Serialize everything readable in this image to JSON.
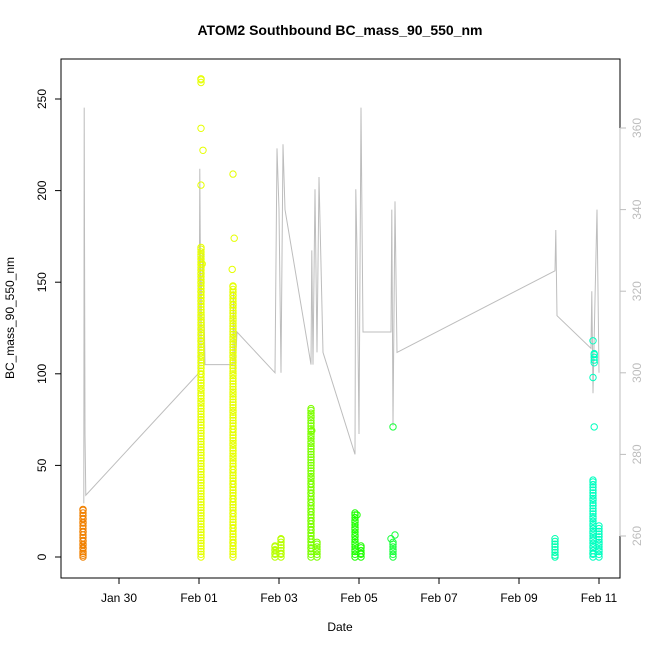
{
  "chart_data": {
    "type": "scatter",
    "title": "ATOM2 Southbound BC_mass_90_550_nm",
    "xlabel": "Date",
    "ylabel": "BC_mass_90_550_nm",
    "x_ticks": [
      "Jan 30",
      "Feb 01",
      "Feb 03",
      "Feb 05",
      "Feb 07",
      "Feb 09",
      "Feb 11"
    ],
    "y_ticks": [
      0,
      50,
      100,
      150,
      200,
      250
    ],
    "y2_ticks": [
      260,
      280,
      300,
      320,
      340,
      360
    ],
    "xlim": [
      "Jan 29 00:24",
      "Feb 11 15:12"
    ],
    "ylim": [
      -10,
      270
    ],
    "y2lim": [
      251.5,
      371.5
    ],
    "grid": false,
    "legend": "none",
    "colors": {
      "scatter_jan29": "#f08000",
      "scatter_feb01": "#e6ff00",
      "scatter_feb03": "#b8ff00",
      "scatter_feb04": "#7cff00",
      "scatter_feb05": "#1eff00",
      "scatter_feb06": "#1aff3c",
      "scatter_feb10": "#00ffb0",
      "scatter_feb11": "#00ffc0",
      "secondary_line": "#bdbdbd",
      "axis": "#000000"
    },
    "series": [
      {
        "color_key": "scatter_jan29",
        "x": [
          "Jan 29 06:00",
          "Jan 29 06:00"
        ],
        "y_range": [
          0,
          26
        ],
        "points": [
          [
            0.1,
            0
          ],
          [
            0.1,
            1
          ],
          [
            0.1,
            2
          ],
          [
            0.1,
            3
          ],
          [
            0.1,
            5
          ],
          [
            0.1,
            7
          ],
          [
            0.1,
            9
          ],
          [
            0.1,
            12
          ],
          [
            0.1,
            14
          ],
          [
            0.1,
            17
          ],
          [
            0.1,
            19
          ],
          [
            0.1,
            21
          ],
          [
            0.1,
            24
          ],
          [
            0.1,
            26
          ]
        ]
      },
      {
        "color_key": "scatter_feb01",
        "points": [
          [
            3.05,
            261
          ],
          [
            3.05,
            259
          ],
          [
            3.05,
            234
          ],
          [
            3.1,
            222
          ],
          [
            3.05,
            203
          ],
          [
            3.05,
            169
          ],
          [
            3.05,
            165
          ],
          [
            3.08,
            160
          ],
          [
            3.05,
            155
          ],
          [
            3.05,
            150
          ],
          [
            3.05,
            145
          ],
          [
            3.05,
            140
          ],
          [
            3.05,
            132
          ],
          [
            3.05,
            125
          ],
          [
            3.05,
            118
          ],
          [
            3.05,
            110
          ],
          [
            3.05,
            100
          ],
          [
            3.05,
            92
          ],
          [
            3.05,
            85
          ],
          [
            3.05,
            78
          ],
          [
            3.05,
            72
          ],
          [
            3.05,
            66
          ],
          [
            3.05,
            60
          ],
          [
            3.05,
            54
          ],
          [
            3.05,
            48
          ],
          [
            3.05,
            42
          ],
          [
            3.05,
            36
          ],
          [
            3.05,
            30
          ],
          [
            3.05,
            24
          ],
          [
            3.05,
            18
          ],
          [
            3.05,
            12
          ],
          [
            3.05,
            6
          ],
          [
            3.05,
            0
          ],
          [
            3.85,
            209
          ],
          [
            3.88,
            174
          ],
          [
            3.83,
            157
          ],
          [
            3.85,
            148
          ],
          [
            3.85,
            143
          ],
          [
            3.85,
            138
          ],
          [
            3.85,
            130
          ],
          [
            3.85,
            120
          ],
          [
            3.85,
            110
          ],
          [
            3.85,
            100
          ],
          [
            3.85,
            90
          ],
          [
            3.85,
            80
          ],
          [
            3.85,
            70
          ],
          [
            3.85,
            62
          ],
          [
            3.85,
            55
          ],
          [
            3.85,
            48
          ],
          [
            3.85,
            40
          ],
          [
            3.85,
            32
          ],
          [
            3.85,
            24
          ],
          [
            3.85,
            16
          ],
          [
            3.85,
            8
          ],
          [
            3.85,
            0
          ]
        ]
      },
      {
        "color_key": "scatter_feb03",
        "points": [
          [
            4.9,
            0
          ],
          [
            4.9,
            2
          ],
          [
            4.9,
            4
          ],
          [
            4.9,
            6
          ],
          [
            5.05,
            10
          ],
          [
            5.05,
            5
          ],
          [
            5.05,
            2
          ],
          [
            5.05,
            0
          ]
        ]
      },
      {
        "color_key": "scatter_feb04",
        "points": [
          [
            5.8,
            81
          ],
          [
            5.8,
            77
          ],
          [
            5.82,
            69
          ],
          [
            5.8,
            67
          ],
          [
            5.8,
            63
          ],
          [
            5.8,
            56
          ],
          [
            5.8,
            50
          ],
          [
            5.8,
            47
          ],
          [
            5.8,
            44
          ],
          [
            5.8,
            40
          ],
          [
            5.8,
            35
          ],
          [
            5.8,
            30
          ],
          [
            5.8,
            25
          ],
          [
            5.8,
            20
          ],
          [
            5.8,
            15
          ],
          [
            5.8,
            10
          ],
          [
            5.8,
            5
          ],
          [
            5.8,
            0
          ],
          [
            5.95,
            8
          ],
          [
            5.95,
            4
          ],
          [
            5.95,
            0
          ]
        ]
      },
      {
        "color_key": "scatter_feb05",
        "points": [
          [
            6.9,
            24
          ],
          [
            6.95,
            23
          ],
          [
            6.9,
            20
          ],
          [
            6.9,
            16
          ],
          [
            6.9,
            12
          ],
          [
            6.9,
            8
          ],
          [
            6.9,
            4
          ],
          [
            6.9,
            0
          ],
          [
            7.05,
            6
          ],
          [
            7.05,
            2
          ],
          [
            7.05,
            0
          ]
        ]
      },
      {
        "color_key": "scatter_feb06",
        "points": [
          [
            7.85,
            71
          ],
          [
            7.8,
            10
          ],
          [
            7.9,
            12
          ],
          [
            7.85,
            8
          ],
          [
            7.85,
            4
          ],
          [
            7.85,
            0
          ]
        ]
      },
      {
        "color_key": "scatter_feb10",
        "points": [
          [
            11.9,
            10
          ],
          [
            11.9,
            7
          ],
          [
            11.9,
            4
          ],
          [
            11.9,
            1
          ],
          [
            11.9,
            0
          ]
        ]
      },
      {
        "color_key": "scatter_feb11",
        "points": [
          [
            12.85,
            118
          ],
          [
            12.88,
            111
          ],
          [
            12.88,
            106
          ],
          [
            12.85,
            98
          ],
          [
            12.88,
            71
          ],
          [
            12.85,
            42
          ],
          [
            12.85,
            38
          ],
          [
            12.85,
            32
          ],
          [
            12.85,
            28
          ],
          [
            12.85,
            22
          ],
          [
            12.85,
            18
          ],
          [
            12.85,
            14
          ],
          [
            12.85,
            10
          ],
          [
            12.85,
            6
          ],
          [
            12.85,
            2
          ],
          [
            12.85,
            0
          ],
          [
            13.0,
            17
          ],
          [
            13.0,
            8
          ],
          [
            13.0,
            4
          ],
          [
            13.0,
            0
          ]
        ]
      }
    ],
    "secondary_series": {
      "axis": "right",
      "color_key": "secondary_line",
      "note_x_units": "days since Jan 29 00:00",
      "points": [
        [
          0.12,
          268
        ],
        [
          0.13,
          365
        ],
        [
          0.15,
          285
        ],
        [
          0.17,
          270
        ],
        [
          3.0,
          300
        ],
        [
          3.02,
          350
        ],
        [
          3.05,
          306
        ],
        [
          3.06,
          320
        ],
        [
          3.1,
          330
        ],
        [
          3.15,
          302
        ],
        [
          3.85,
          302
        ],
        [
          3.86,
          320
        ],
        [
          3.9,
          300
        ],
        [
          3.95,
          310
        ],
        [
          4.9,
          300
        ],
        [
          4.95,
          355
        ],
        [
          5.0,
          340
        ],
        [
          5.05,
          300
        ],
        [
          5.1,
          356
        ],
        [
          5.15,
          340
        ],
        [
          5.8,
          302
        ],
        [
          5.82,
          330
        ],
        [
          5.85,
          302
        ],
        [
          5.9,
          345
        ],
        [
          5.95,
          305
        ],
        [
          6.0,
          348
        ],
        [
          6.1,
          305
        ],
        [
          6.9,
          280
        ],
        [
          6.92,
          345
        ],
        [
          6.95,
          330
        ],
        [
          7.0,
          285
        ],
        [
          7.05,
          365
        ],
        [
          7.1,
          310
        ],
        [
          7.8,
          310
        ],
        [
          7.82,
          340
        ],
        [
          7.85,
          287
        ],
        [
          7.9,
          342
        ],
        [
          7.95,
          305
        ],
        [
          11.9,
          325
        ],
        [
          11.92,
          335
        ],
        [
          11.95,
          314
        ],
        [
          12.8,
          306
        ],
        [
          12.82,
          320
        ],
        [
          12.85,
          295
        ],
        [
          12.9,
          318
        ],
        [
          12.95,
          340
        ],
        [
          13.0,
          300
        ]
      ]
    }
  }
}
